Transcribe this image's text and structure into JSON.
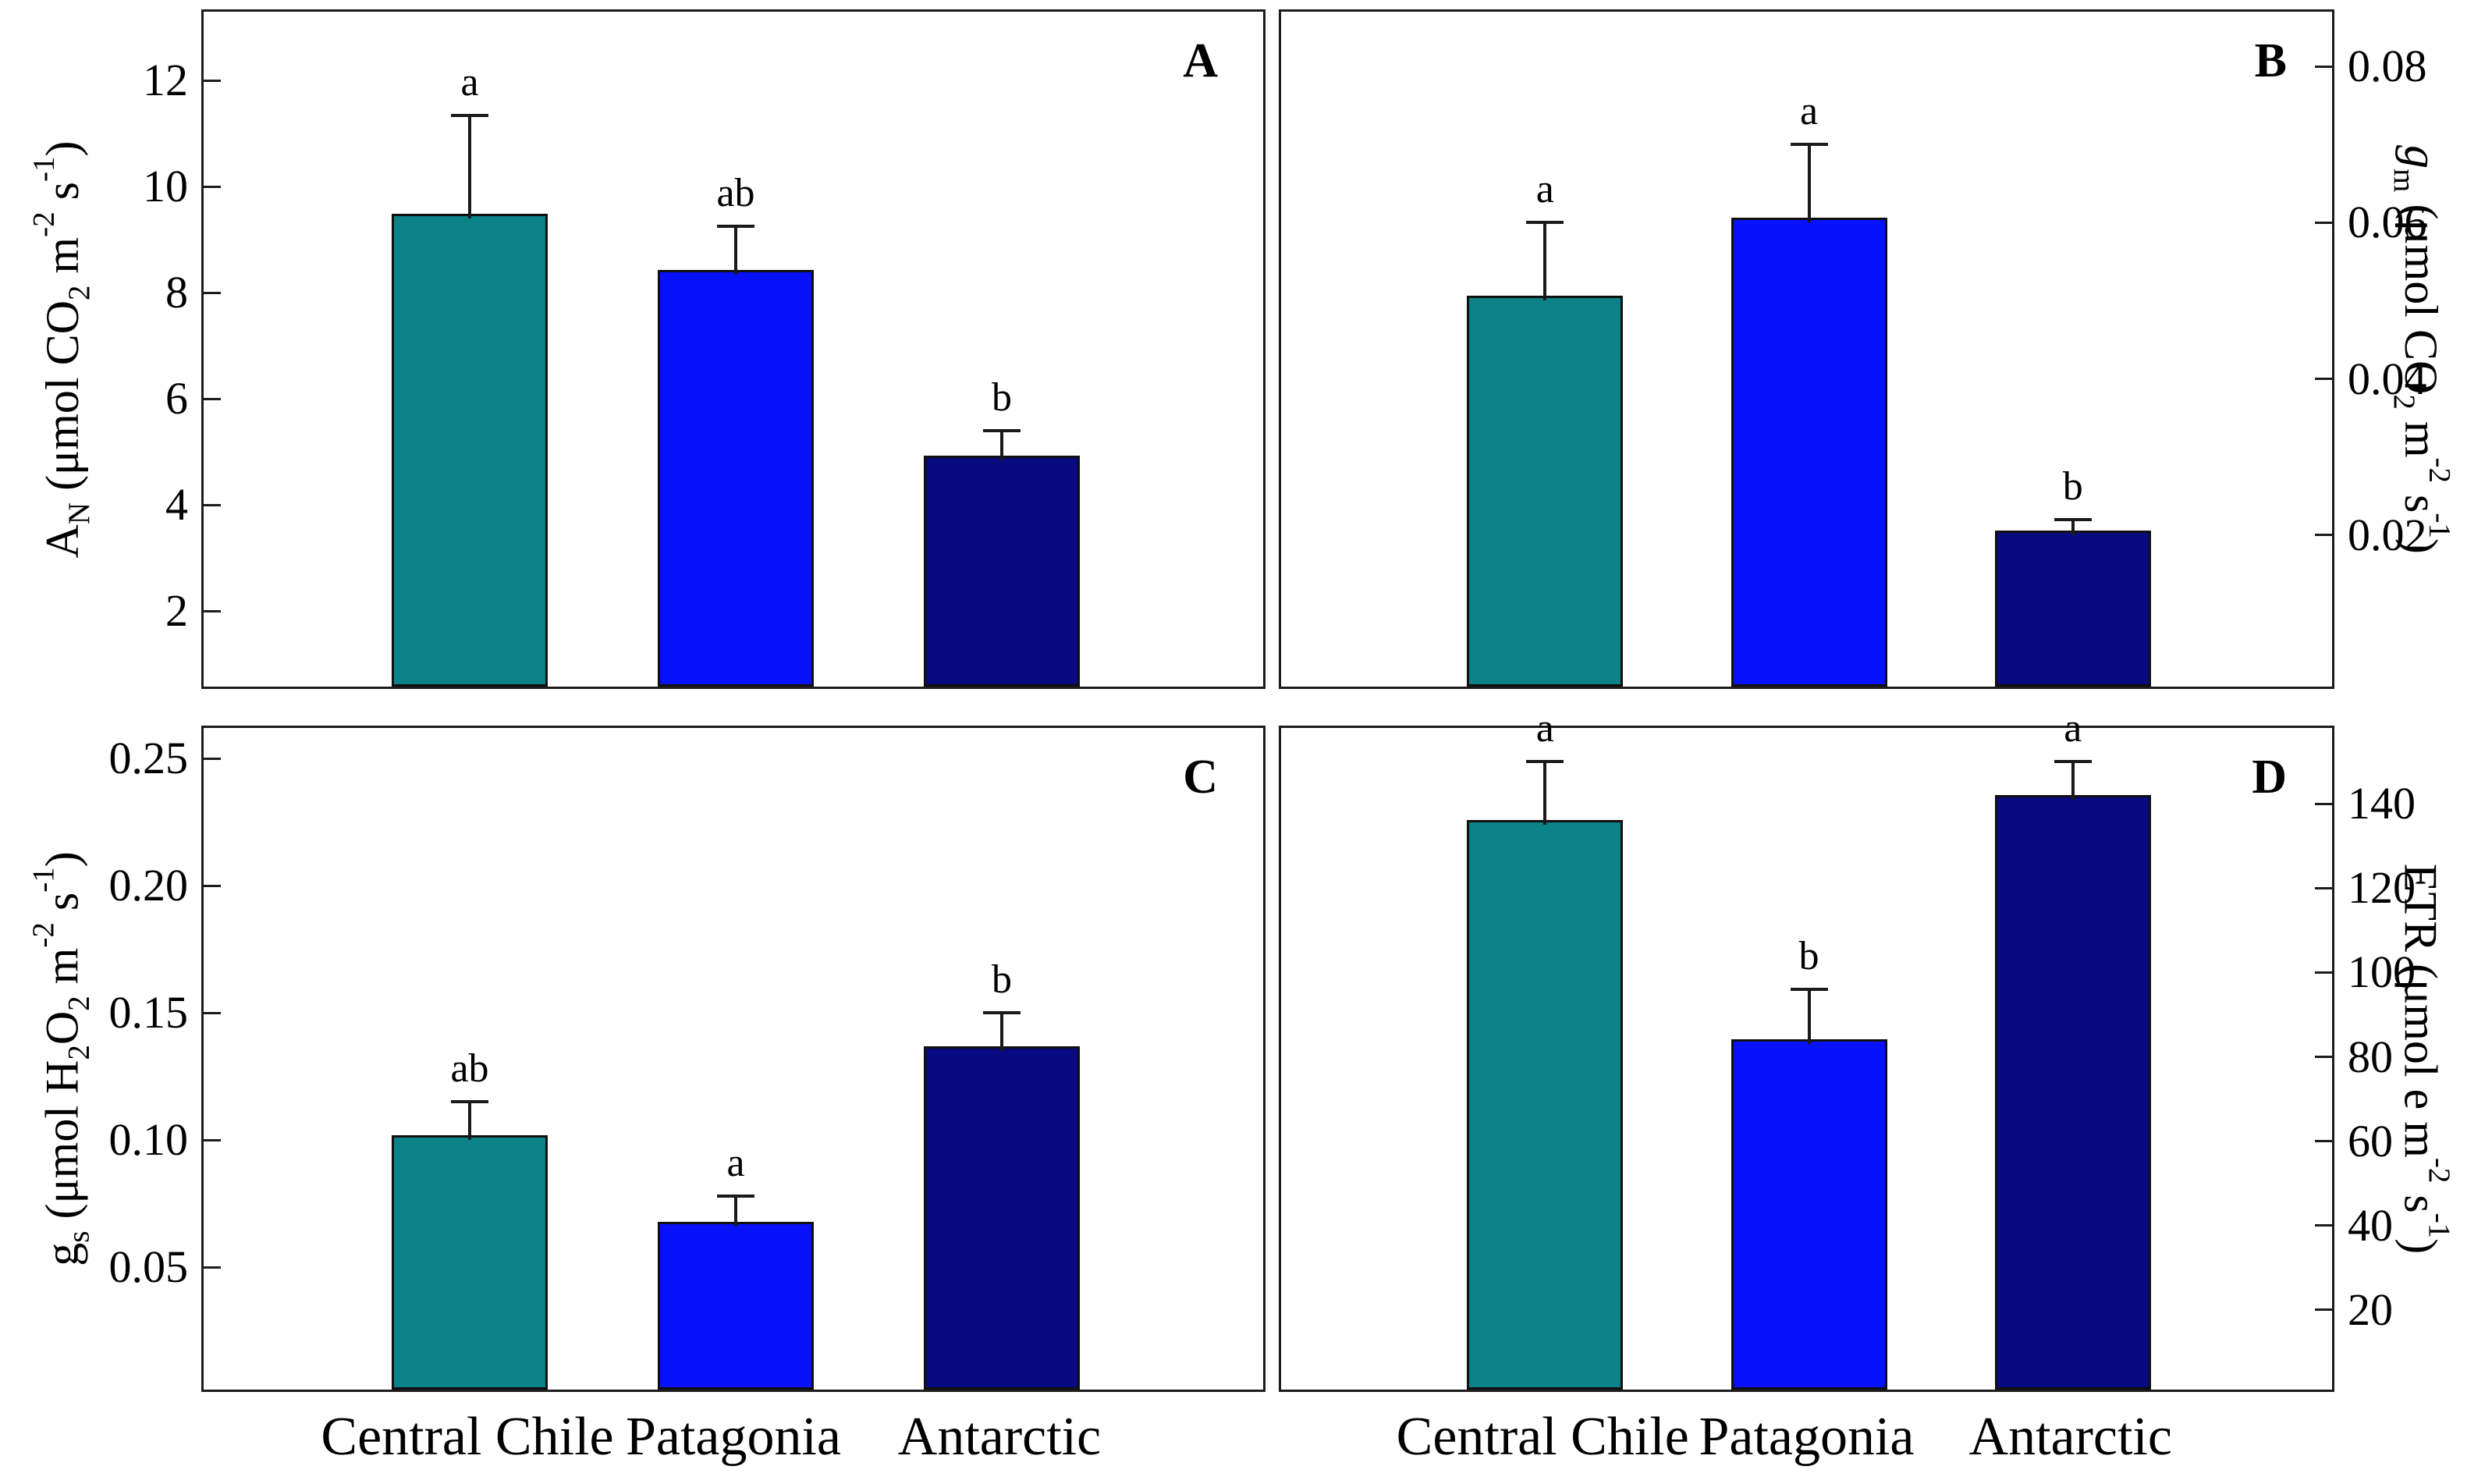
{
  "figure": {
    "background": "#ffffff",
    "border_color": "#1c1c1c",
    "categories": [
      "Central Chile",
      "Patagonia",
      "Antarctic"
    ],
    "bar_colors": [
      "#0B8287",
      "#0712FB",
      "#0A0A80"
    ]
  },
  "chart_data": [
    {
      "type": "bar",
      "panel_letter": "A",
      "axis_side": "left",
      "ylabel": "AN (μmol CO2 m-2 s-1)",
      "ylabel_segments": [
        {
          "t": "A"
        },
        {
          "t": "N",
          "sub": true
        },
        {
          "t": " (μmol CO"
        },
        {
          "t": "2",
          "sub": true
        },
        {
          "t": " m"
        },
        {
          "t": "-2",
          "sup": true
        },
        {
          "t": " s"
        },
        {
          "t": "-1",
          "sup": true
        },
        {
          "t": ")"
        }
      ],
      "ylim": [
        0.49,
        13.3
      ],
      "yticks": [
        "2",
        "4",
        "6",
        "8",
        "10",
        "12"
      ],
      "grid": false,
      "categories": [
        "Central Chile",
        "Patagonia",
        "Antarctic"
      ],
      "values": [
        9.4,
        8.35,
        4.85
      ],
      "errors_plus": [
        1.95,
        0.9,
        0.55
      ],
      "sig_letters": [
        "a",
        "ab",
        "b"
      ]
    },
    {
      "type": "bar",
      "panel_letter": "B",
      "axis_side": "right",
      "ylabel": "gm (μmol CO2 m-2 s-1)",
      "ylabel_segments": [
        {
          "t": "g",
          "italic": true
        },
        {
          "t": "m",
          "sub": true
        },
        {
          "t": " (μmol CO"
        },
        {
          "t": "2",
          "sub": true
        },
        {
          "t": " m"
        },
        {
          "t": "-2",
          "sup": true
        },
        {
          "t": " s"
        },
        {
          "t": "-1",
          "sup": true
        },
        {
          "t": ")"
        }
      ],
      "ylim": [
        0,
        0.087
      ],
      "yticks": [
        "0.02",
        "0.04",
        "0.06",
        "0.08"
      ],
      "grid": false,
      "categories": [
        "Central Chile",
        "Patagonia",
        "Antarctic"
      ],
      "values": [
        0.05,
        0.06,
        0.02
      ],
      "errors_plus": [
        0.01,
        0.01,
        0.002
      ],
      "sig_letters": [
        "a",
        "a",
        "b"
      ]
    },
    {
      "type": "bar",
      "panel_letter": "C",
      "axis_side": "left",
      "ylabel": "gs (μmol H2O2 m-2 s-1)",
      "ylabel_segments": [
        {
          "t": "g"
        },
        {
          "t": "s",
          "sub": true
        },
        {
          "t": " (μmol H"
        },
        {
          "t": "2",
          "sub": true
        },
        {
          "t": "O"
        },
        {
          "t": "2",
          "sub": true
        },
        {
          "t": " m"
        },
        {
          "t": "-2",
          "sup": true
        },
        {
          "t": " s"
        },
        {
          "t": "-1",
          "sup": true
        },
        {
          "t": ")"
        }
      ],
      "ylim": [
        0,
        0.262
      ],
      "yticks": [
        "0.05",
        "0.10",
        "0.15",
        "0.20",
        "0.25"
      ],
      "grid": false,
      "categories": [
        "Central Chile",
        "Patagonia",
        "Antarctic"
      ],
      "values": [
        0.1,
        0.066,
        0.135
      ],
      "errors_plus": [
        0.015,
        0.012,
        0.015
      ],
      "sig_letters": [
        "ab",
        "a",
        "b"
      ]
    },
    {
      "type": "bar",
      "panel_letter": "D",
      "axis_side": "right",
      "ylabel": "ETR (μmol e m-2 s-1)",
      "ylabel_segments": [
        {
          "t": "ETR (μmol e m"
        },
        {
          "t": "-2",
          "sup": true
        },
        {
          "t": " s"
        },
        {
          "t": "-1",
          "sup": true
        },
        {
          "t": ")"
        }
      ],
      "ylim": [
        0,
        158
      ],
      "yticks": [
        "20",
        "40",
        "60",
        "80",
        "100",
        "120",
        "140"
      ],
      "grid": false,
      "categories": [
        "Central Chile",
        "Patagonia",
        "Antarctic"
      ],
      "values": [
        135,
        83,
        141
      ],
      "errors_plus": [
        15,
        13,
        9
      ],
      "sig_letters": [
        "a",
        "b",
        "a"
      ]
    }
  ]
}
